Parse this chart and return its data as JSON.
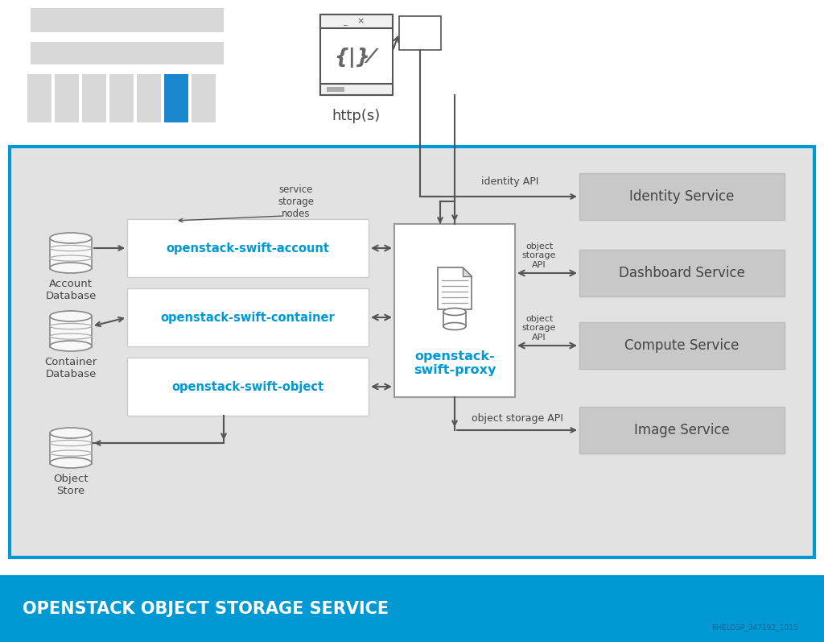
{
  "title": "OPENSTACK OBJECT STORAGE SERVICE",
  "subtitle_code": "RHELOSP_347192_1015",
  "bg_color": "#e2e2e2",
  "blue_color": "#0099d3",
  "white": "#ffffff",
  "text_blue": "#0099d3",
  "text_dark": "#444444",
  "text_gray": "#666666",
  "arrow_color": "#555555",
  "services": [
    "Identity Service",
    "Dashboard Service",
    "Compute Service",
    "Image Service"
  ],
  "swift_services": [
    "openstack-swift-account",
    "openstack-swift-container",
    "openstack-swift-object"
  ],
  "db_labels": [
    "Account\nDatabase",
    "Container\nDatabase",
    "Object\nStore"
  ],
  "proxy_label": "openstack-\nswift-proxy",
  "http_label": "http(s)",
  "annot_service_nodes": "service\nstorage\nnodes",
  "annot_identity": "identity API",
  "annot_obj_api": "object\nstorage\nAPI",
  "annot_obj_api_long": "object storage API"
}
